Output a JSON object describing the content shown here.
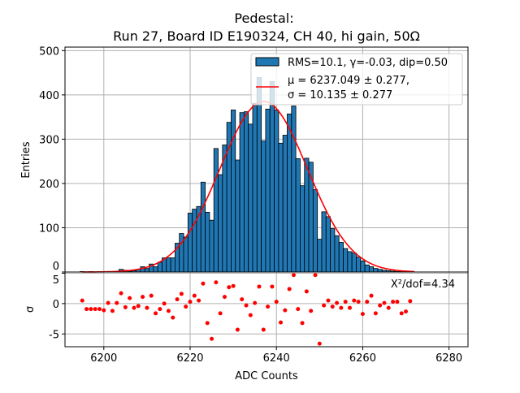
{
  "chart_data": [
    {
      "type": "bar",
      "title": "Pedestal:",
      "subtitle": "Run 27, Board ID E190324, CH 40, hi gain, 50Ω",
      "ylabel": "Entries",
      "xlim": [
        6191,
        6284.4
      ],
      "ylim": [
        0,
        508
      ],
      "yticks": [
        0,
        100,
        200,
        300,
        400,
        500
      ],
      "grid": true,
      "legend_placement": "top-right",
      "colors": {
        "bars": "#1f77b4",
        "bar_edge": "#000000",
        "fit": "#ff0000"
      },
      "legend": {
        "histogram": "RMS=10.1, γ=-0.03, dip=0.50",
        "fit_line1": "μ = 6237.049 ± 0.277,",
        "fit_line2": "σ = 10.135 ± 0.277"
      },
      "x_start": 6195,
      "bin_width": 1,
      "values": [
        1,
        0,
        1,
        0,
        0,
        1,
        0,
        0,
        1,
        6,
        4,
        2,
        3,
        6,
        12,
        8,
        18,
        12,
        22,
        32,
        32,
        32,
        65,
        87,
        79,
        133,
        142,
        148,
        203,
        135,
        117,
        279,
        220,
        287,
        338,
        366,
        253,
        360,
        362,
        334,
        381,
        439,
        296,
        368,
        430,
        366,
        291,
        309,
        357,
        375,
        256,
        195,
        257,
        248,
        186,
        74,
        136,
        125,
        98,
        82,
        67,
        53,
        46,
        43,
        34,
        25,
        16,
        12,
        8,
        6,
        4,
        3,
        2,
        1,
        1,
        1,
        1
      ],
      "fit": {
        "type": "gaussian",
        "mu": 6237.049,
        "sigma": 10.135,
        "amplitude": 385,
        "range": [
          6195,
          6272
        ]
      }
    },
    {
      "type": "scatter",
      "xlabel": "ADC Counts",
      "ylabel": "σ",
      "xlim": [
        6191,
        6284.4
      ],
      "ylim": [
        -7.1,
        5.2
      ],
      "xticks": [
        6200,
        6220,
        6240,
        6260,
        6280
      ],
      "yticks": [
        -5,
        0,
        5
      ],
      "grid": true,
      "annotation": "X²/dof=4.34",
      "color": "#ff0000",
      "x_start": 6195,
      "values": [
        0.5,
        -0.9,
        -0.9,
        -0.9,
        -0.9,
        -1.1,
        0.1,
        -1.2,
        0.1,
        1.7,
        -0.6,
        0.9,
        -0.7,
        -0.4,
        1.1,
        -0.7,
        1.3,
        -1.6,
        -0.9,
        0,
        -1.2,
        -2.3,
        0.7,
        1.6,
        -0.5,
        0.3,
        1.3,
        0.5,
        3.3,
        -3.2,
        -5.8,
        3.5,
        -1.6,
        1.1,
        2.7,
        2.9,
        -4.3,
        0.7,
        -0.3,
        -1.9,
        0.1,
        2.8,
        -4.3,
        -0.5,
        2.8,
        0.3,
        -3.1,
        -1.1,
        2.4,
        4.7,
        -0.9,
        -3.2,
        2.0,
        -1.2,
        4.7,
        -6.6,
        -0.3,
        0.5,
        -0.5,
        0.1,
        -0.7,
        0.3,
        -0.7,
        0.5,
        0.3,
        -1.7,
        0.3,
        1.3,
        -1.6,
        -0.3,
        0.1,
        -0.7,
        0.3,
        0.3,
        -1.6,
        -1.3,
        0.4
      ]
    }
  ]
}
